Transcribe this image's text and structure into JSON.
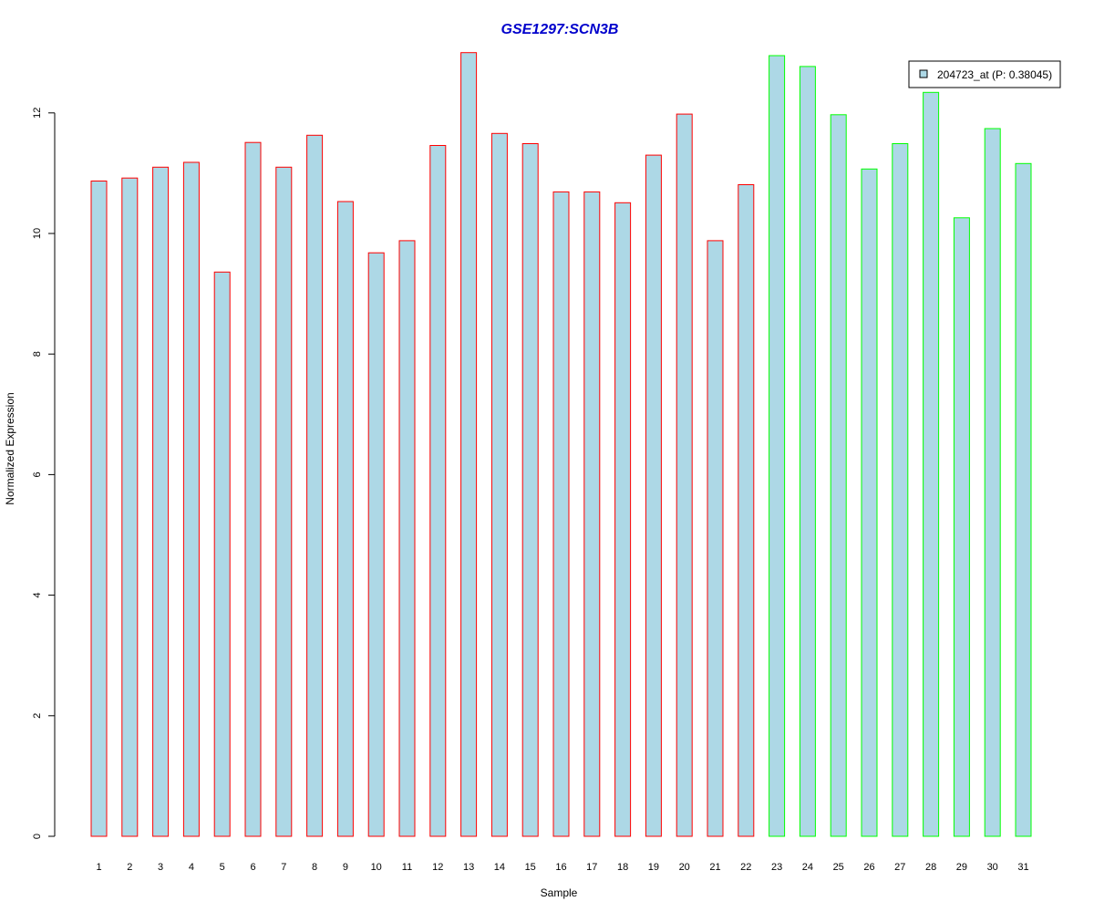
{
  "chart_data": {
    "type": "bar",
    "title": "GSE1297:SCN3B",
    "xlabel": "Sample",
    "ylabel": "Normalized Expression",
    "ylim": [
      0,
      13
    ],
    "yticks": [
      0,
      2,
      4,
      6,
      8,
      10,
      12
    ],
    "categories": [
      "1",
      "2",
      "3",
      "4",
      "5",
      "6",
      "7",
      "8",
      "9",
      "10",
      "11",
      "12",
      "13",
      "14",
      "15",
      "16",
      "17",
      "18",
      "19",
      "20",
      "21",
      "22",
      "23",
      "24",
      "25",
      "26",
      "27",
      "28",
      "29",
      "30",
      "31"
    ],
    "values": [
      10.87,
      10.92,
      11.1,
      11.18,
      9.36,
      11.51,
      11.1,
      11.63,
      10.53,
      9.68,
      9.88,
      11.46,
      13.0,
      11.66,
      11.49,
      10.69,
      10.69,
      10.51,
      11.3,
      11.98,
      9.88,
      10.81,
      12.95,
      12.77,
      11.97,
      11.07,
      11.49,
      12.34,
      10.26,
      11.74,
      11.16
    ],
    "groups": [
      "red",
      "red",
      "red",
      "red",
      "red",
      "red",
      "red",
      "red",
      "red",
      "red",
      "red",
      "red",
      "red",
      "red",
      "red",
      "red",
      "red",
      "red",
      "red",
      "red",
      "red",
      "red",
      "green",
      "green",
      "green",
      "green",
      "green",
      "green",
      "green",
      "green",
      "green"
    ],
    "legend": {
      "entries": [
        {
          "label": "204723_at (P: 0.38045)",
          "color": "#add8e6"
        }
      ],
      "position": "top-right"
    },
    "grid": false
  },
  "colors": {
    "bar_fill": "#add8e6",
    "border_red": "#ff0000",
    "border_green": "#00ff00",
    "title": "#0000cc"
  }
}
